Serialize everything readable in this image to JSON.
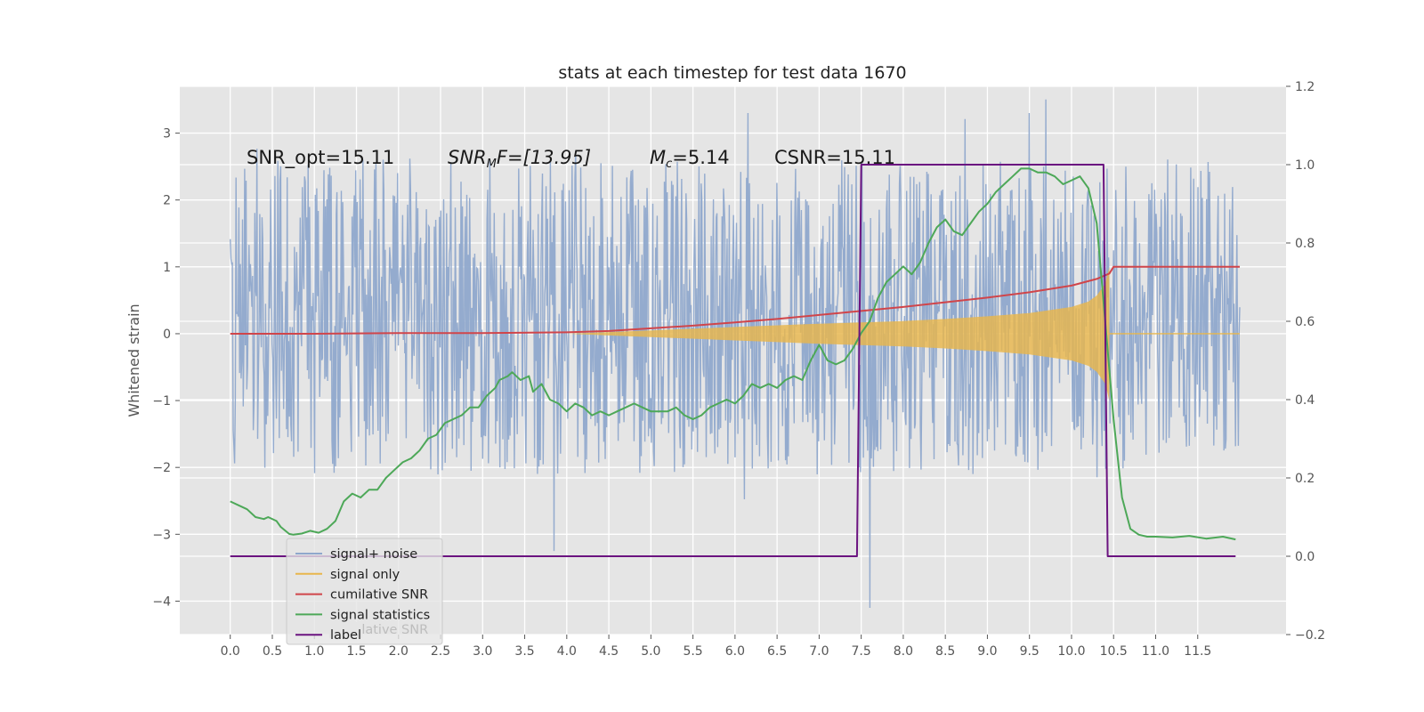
{
  "chart_data": {
    "type": "line",
    "title": "stats at each timestep for test data 1670",
    "ylabel": "Whitened strain",
    "xlim": [
      -0.6,
      12.55
    ],
    "ylim": [
      -4.5,
      3.7
    ],
    "y2lim": [
      -0.2,
      1.2
    ],
    "x_ticks": [
      0.0,
      0.5,
      1.0,
      1.5,
      2.0,
      2.5,
      3.0,
      3.5,
      4.0,
      4.5,
      5.0,
      5.5,
      6.0,
      6.5,
      7.0,
      7.5,
      8.0,
      8.5,
      9.0,
      9.5,
      10.0,
      10.5,
      11.0,
      11.5
    ],
    "x_tick_labels": [
      "0.0",
      "0.5",
      "1.0",
      "1.5",
      "2.0",
      "2.5",
      "3.0",
      "3.5",
      "4.0",
      "4.5",
      "5.0",
      "5.5",
      "6.0",
      "6.5",
      "7.0",
      "7.5",
      "8.0",
      "8.5",
      "9.0",
      "9.5",
      "10.0",
      "10.5",
      "11.0",
      "11.5"
    ],
    "y_ticks": [
      -4,
      -3,
      -2,
      -1,
      0,
      1,
      2,
      3
    ],
    "y_tick_labels": [
      "−4",
      "−3",
      "−2",
      "−1",
      "0",
      "1",
      "2",
      "3"
    ],
    "y2_ticks": [
      -0.2,
      0.0,
      0.2,
      0.4,
      0.6,
      0.8,
      1.0,
      1.2
    ],
    "y2_tick_labels": [
      "−0.2",
      "0.0",
      "0.2",
      "0.4",
      "0.6",
      "0.8",
      "1.0",
      "1.2"
    ],
    "grid": true,
    "legend_position": "lower-left",
    "annotations": {
      "snr_opt": "SNR_opt=15.11",
      "snr_mf_pre": "SNR",
      "snr_mf_sub": "M",
      "snr_mf_post": "F=[13.95]",
      "mc_pre": "M",
      "mc_sub": "c",
      "mc_post": "=5.14",
      "csnr": "CSNR=15.11"
    },
    "legend_ghost_text": "cumilative SNR",
    "series": [
      {
        "name": "signal+ noise",
        "color": "#8fa8cc",
        "axis": "left",
        "x_range": [
          0.0,
          12.0
        ],
        "typical_range": [
          -2.0,
          2.5
        ],
        "extremes": [
          {
            "x": 7.6,
            "y": -4.1
          },
          {
            "x": 6.15,
            "y": 3.3
          },
          {
            "x": 9.5,
            "y": 3.3
          },
          {
            "x": 3.85,
            "y": -3.25
          }
        ]
      },
      {
        "name": "signal only",
        "color": "#e8b64c",
        "axis": "left",
        "envelope_x": [
          4.0,
          5.0,
          6.0,
          7.0,
          7.5,
          8.0,
          8.5,
          9.0,
          9.5,
          10.0,
          10.2,
          10.3,
          10.4,
          10.45
        ],
        "envelope_amp": [
          0.0,
          0.05,
          0.1,
          0.15,
          0.17,
          0.19,
          0.22,
          0.26,
          0.31,
          0.4,
          0.48,
          0.57,
          0.75,
          1.0
        ]
      },
      {
        "name": "cumilative SNR",
        "color": "#d0454a",
        "axis": "left",
        "x": [
          0.0,
          1.0,
          2.0,
          3.0,
          4.0,
          4.5,
          5.0,
          5.5,
          6.0,
          6.5,
          7.0,
          7.5,
          8.0,
          8.5,
          9.0,
          9.5,
          10.0,
          10.3,
          10.45,
          10.5,
          11.5,
          12.0
        ],
        "y": [
          0.0,
          0.0,
          0.01,
          0.01,
          0.02,
          0.04,
          0.08,
          0.12,
          0.17,
          0.22,
          0.28,
          0.34,
          0.4,
          0.47,
          0.54,
          0.62,
          0.72,
          0.82,
          0.9,
          1.0,
          1.0,
          1.0
        ]
      },
      {
        "name": "signal statistics",
        "color": "#4da858",
        "axis": "right",
        "x": [
          0.0,
          0.1,
          0.2,
          0.3,
          0.4,
          0.45,
          0.55,
          0.6,
          0.7,
          0.75,
          0.85,
          0.95,
          1.05,
          1.15,
          1.25,
          1.3,
          1.35,
          1.45,
          1.55,
          1.65,
          1.75,
          1.85,
          1.95,
          2.05,
          2.15,
          2.25,
          2.35,
          2.45,
          2.55,
          2.65,
          2.75,
          2.85,
          2.95,
          3.05,
          3.15,
          3.2,
          3.3,
          3.35,
          3.45,
          3.55,
          3.6,
          3.7,
          3.8,
          3.9,
          4.0,
          4.1,
          4.2,
          4.3,
          4.4,
          4.5,
          4.6,
          4.7,
          4.8,
          4.9,
          5.0,
          5.1,
          5.2,
          5.3,
          5.4,
          5.5,
          5.6,
          5.7,
          5.8,
          5.9,
          6.0,
          6.1,
          6.2,
          6.3,
          6.4,
          6.5,
          6.6,
          6.7,
          6.8,
          6.9,
          7.0,
          7.1,
          7.2,
          7.3,
          7.4,
          7.5,
          7.6,
          7.7,
          7.8,
          7.9,
          8.0,
          8.1,
          8.2,
          8.3,
          8.4,
          8.5,
          8.6,
          8.7,
          8.8,
          8.9,
          9.0,
          9.1,
          9.2,
          9.3,
          9.4,
          9.5,
          9.6,
          9.7,
          9.8,
          9.9,
          10.0,
          10.1,
          10.2,
          10.3,
          10.4,
          10.5,
          10.6,
          10.7,
          10.8,
          10.9,
          11.0,
          11.2,
          11.4,
          11.6,
          11.8,
          11.95
        ],
        "y": [
          0.14,
          0.13,
          0.12,
          0.1,
          0.095,
          0.1,
          0.09,
          0.075,
          0.057,
          0.055,
          0.058,
          0.065,
          0.06,
          0.07,
          0.09,
          0.115,
          0.14,
          0.16,
          0.15,
          0.17,
          0.17,
          0.2,
          0.22,
          0.24,
          0.25,
          0.27,
          0.3,
          0.31,
          0.34,
          0.35,
          0.36,
          0.38,
          0.38,
          0.41,
          0.43,
          0.45,
          0.46,
          0.47,
          0.45,
          0.46,
          0.42,
          0.44,
          0.4,
          0.39,
          0.37,
          0.39,
          0.38,
          0.36,
          0.37,
          0.36,
          0.37,
          0.38,
          0.39,
          0.38,
          0.37,
          0.37,
          0.37,
          0.38,
          0.36,
          0.35,
          0.36,
          0.38,
          0.39,
          0.4,
          0.39,
          0.41,
          0.44,
          0.43,
          0.44,
          0.43,
          0.45,
          0.46,
          0.45,
          0.5,
          0.54,
          0.5,
          0.49,
          0.5,
          0.53,
          0.57,
          0.6,
          0.66,
          0.7,
          0.72,
          0.74,
          0.72,
          0.75,
          0.8,
          0.84,
          0.86,
          0.83,
          0.82,
          0.85,
          0.88,
          0.9,
          0.93,
          0.95,
          0.97,
          0.99,
          0.99,
          0.98,
          0.98,
          0.97,
          0.95,
          0.96,
          0.97,
          0.94,
          0.85,
          0.6,
          0.35,
          0.15,
          0.07,
          0.055,
          0.05,
          0.05,
          0.048,
          0.052,
          0.045,
          0.05,
          0.043
        ]
      },
      {
        "name": "label",
        "color": "#6b1380",
        "axis": "right",
        "x": [
          0.0,
          7.45,
          7.5,
          10.38,
          10.43,
          11.95
        ],
        "y": [
          0.0,
          0.0,
          1.0,
          1.0,
          0.0,
          0.0
        ]
      }
    ]
  }
}
